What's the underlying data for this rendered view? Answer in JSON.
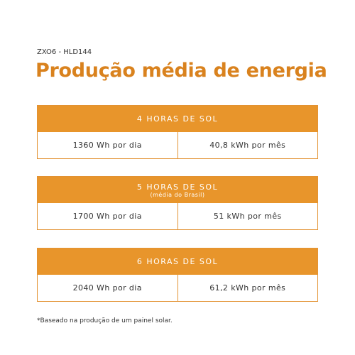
{
  "header": {
    "code": "ZXO6 - HLD144",
    "title": "Produção média de energia"
  },
  "tables": [
    {
      "heading": "4 HORAS DE SOL",
      "cells": [
        "1360 Wh por dia",
        "40,8 kWh por mês"
      ]
    },
    {
      "heading": "5 HORAS DE SOL",
      "subheading": "(média do Brasil)",
      "cells": [
        "1700 Wh por dia",
        "51 kWh por mês"
      ]
    },
    {
      "heading": "6 HORAS DE SOL",
      "cells": [
        "2040 Wh por dia",
        "61,2 kWh por mês"
      ]
    }
  ],
  "footnote": "*Baseado na produção de um painel solar."
}
